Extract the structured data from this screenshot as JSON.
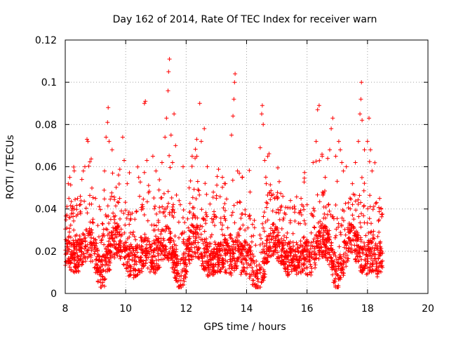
{
  "chart_data": {
    "type": "scatter",
    "title": "Day 162 of 2014, Rate Of TEC Index for receiver warn",
    "xlabel": "GPS time / hours",
    "ylabel": "ROTI / TECUs",
    "xlim": [
      8,
      20
    ],
    "ylim": [
      0,
      0.12
    ],
    "xticks": [
      8,
      10,
      12,
      14,
      16,
      18,
      20
    ],
    "yticks": [
      0,
      0.02,
      0.04,
      0.06,
      0.08,
      0.1,
      0.12
    ],
    "xtick_labels": [
      "8",
      "10",
      "12",
      "14",
      "16",
      "18",
      "20"
    ],
    "ytick_labels": [
      "0",
      "0.02",
      "0.04",
      "0.06",
      "0.08",
      "0.1",
      "0.12"
    ],
    "grid": true,
    "marker": "+",
    "color": "#ff0000",
    "series": [
      {
        "name": "ROTI",
        "points": [
          [
            8.05,
            0.031
          ],
          [
            8.1,
            0.052
          ],
          [
            8.12,
            0.045
          ],
          [
            8.15,
            0.055
          ],
          [
            8.3,
            0.04
          ],
          [
            8.5,
            0.046
          ],
          [
            8.55,
            0.054
          ],
          [
            8.6,
            0.058
          ],
          [
            8.65,
            0.06
          ],
          [
            8.72,
            0.073
          ],
          [
            8.75,
            0.072
          ],
          [
            9.0,
            0.045
          ],
          [
            9.3,
            0.058
          ],
          [
            9.35,
            0.074
          ],
          [
            9.4,
            0.081
          ],
          [
            9.42,
            0.088
          ],
          [
            9.45,
            0.072
          ],
          [
            9.55,
            0.068
          ],
          [
            9.8,
            0.045
          ],
          [
            9.9,
            0.074
          ],
          [
            9.95,
            0.063
          ],
          [
            10.05,
            0.052
          ],
          [
            10.62,
            0.09
          ],
          [
            10.65,
            0.091
          ],
          [
            10.7,
            0.063
          ],
          [
            10.9,
            0.065
          ],
          [
            11.0,
            0.058
          ],
          [
            11.1,
            0.049
          ],
          [
            11.2,
            0.062
          ],
          [
            11.3,
            0.074
          ],
          [
            11.35,
            0.083
          ],
          [
            11.4,
            0.096
          ],
          [
            11.42,
            0.105
          ],
          [
            11.45,
            0.111
          ],
          [
            11.5,
            0.075
          ],
          [
            11.55,
            0.062
          ],
          [
            11.6,
            0.085
          ],
          [
            11.65,
            0.07
          ],
          [
            11.9,
            0.06
          ],
          [
            12.1,
            0.05
          ],
          [
            12.2,
            0.065
          ],
          [
            12.35,
            0.073
          ],
          [
            12.45,
            0.09
          ],
          [
            12.5,
            0.072
          ],
          [
            12.6,
            0.078
          ],
          [
            12.7,
            0.06
          ],
          [
            12.9,
            0.048
          ],
          [
            13.0,
            0.045
          ],
          [
            13.2,
            0.055
          ],
          [
            13.3,
            0.052
          ],
          [
            13.5,
            0.075
          ],
          [
            13.55,
            0.084
          ],
          [
            13.58,
            0.092
          ],
          [
            13.6,
            0.1
          ],
          [
            13.62,
            0.104
          ],
          [
            13.7,
            0.058
          ],
          [
            14.45,
            0.069
          ],
          [
            14.5,
            0.085
          ],
          [
            14.52,
            0.089
          ],
          [
            14.55,
            0.08
          ],
          [
            14.6,
            0.063
          ],
          [
            14.65,
            0.052
          ],
          [
            15.0,
            0.046
          ],
          [
            15.2,
            0.046
          ],
          [
            15.45,
            0.044
          ],
          [
            15.6,
            0.04
          ],
          [
            15.8,
            0.045
          ],
          [
            16.0,
            0.042
          ],
          [
            16.2,
            0.062
          ],
          [
            16.3,
            0.072
          ],
          [
            16.35,
            0.087
          ],
          [
            16.4,
            0.089
          ],
          [
            16.5,
            0.065
          ],
          [
            16.6,
            0.055
          ],
          [
            16.75,
            0.068
          ],
          [
            16.8,
            0.078
          ],
          [
            16.85,
            0.083
          ],
          [
            16.95,
            0.065
          ],
          [
            17.05,
            0.072
          ],
          [
            17.1,
            0.068
          ],
          [
            17.15,
            0.062
          ],
          [
            17.2,
            0.058
          ],
          [
            17.3,
            0.06
          ],
          [
            17.5,
            0.052
          ],
          [
            17.6,
            0.062
          ],
          [
            17.7,
            0.072
          ],
          [
            17.75,
            0.085
          ],
          [
            17.78,
            0.092
          ],
          [
            17.8,
            0.1
          ],
          [
            17.82,
            0.082
          ],
          [
            17.9,
            0.068
          ],
          [
            18.0,
            0.072
          ],
          [
            18.05,
            0.083
          ],
          [
            18.1,
            0.068
          ],
          [
            18.15,
            0.058
          ],
          [
            18.3,
            0.043
          ],
          [
            18.4,
            0.045
          ],
          [
            18.45,
            0.04
          ]
        ]
      }
    ],
    "scatter_cloud": {
      "x_range": [
        8.0,
        18.5
      ],
      "typical_range": [
        0.003,
        0.04
      ],
      "count": 2600
    }
  }
}
